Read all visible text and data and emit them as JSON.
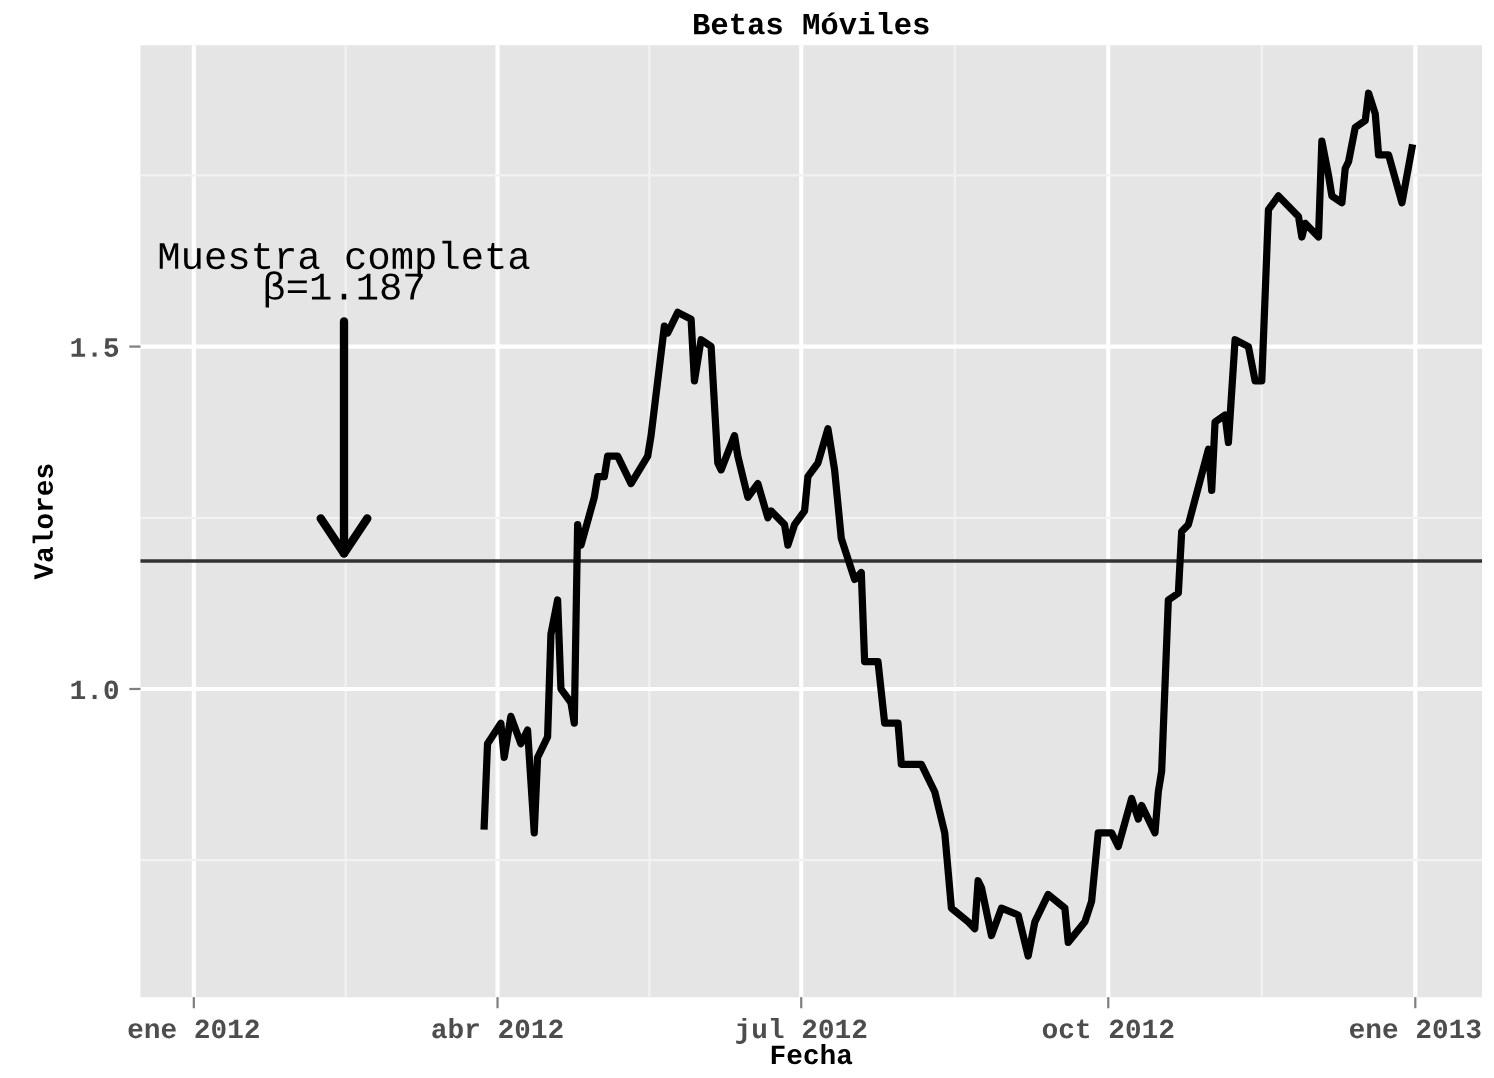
{
  "chart_data": {
    "type": "line",
    "title": "Betas Móviles",
    "xlabel": "Fecha",
    "ylabel": "Valores",
    "x": [
      "2012-03-28",
      "2012-03-29",
      "2012-04-02",
      "2012-04-03",
      "2012-04-05",
      "2012-04-08",
      "2012-04-10",
      "2012-04-12",
      "2012-04-13",
      "2012-04-16",
      "2012-04-17",
      "2012-04-19",
      "2012-04-20",
      "2012-04-23",
      "2012-04-24",
      "2012-04-25",
      "2012-04-26",
      "2012-04-30",
      "2012-05-01",
      "2012-05-03",
      "2012-05-04",
      "2012-05-07",
      "2012-05-11",
      "2012-05-16",
      "2012-05-17",
      "2012-05-21",
      "2012-05-22",
      "2012-05-25",
      "2012-05-29",
      "2012-05-30",
      "2012-06-01",
      "2012-06-04",
      "2012-06-06",
      "2012-06-07",
      "2012-06-11",
      "2012-06-12",
      "2012-06-15",
      "2012-06-18",
      "2012-06-21",
      "2012-06-22",
      "2012-06-26",
      "2012-06-27",
      "2012-06-29",
      "2012-07-02",
      "2012-07-03",
      "2012-07-06",
      "2012-07-09",
      "2012-07-11",
      "2012-07-13",
      "2012-07-17",
      "2012-07-19",
      "2012-07-20",
      "2012-07-24",
      "2012-07-26",
      "2012-07-30",
      "2012-07-31",
      "2012-08-06",
      "2012-08-10",
      "2012-08-13",
      "2012-08-15",
      "2012-08-20",
      "2012-08-22",
      "2012-08-23",
      "2012-08-24",
      "2012-08-27",
      "2012-08-30",
      "2012-09-04",
      "2012-09-07",
      "2012-09-09",
      "2012-09-11",
      "2012-09-13",
      "2012-09-18",
      "2012-09-19",
      "2012-09-24",
      "2012-09-26",
      "2012-09-28",
      "2012-10-02",
      "2012-10-04",
      "2012-10-08",
      "2012-10-10",
      "2012-10-11",
      "2012-10-15",
      "2012-10-16",
      "2012-10-17",
      "2012-10-19",
      "2012-10-22",
      "2012-10-23",
      "2012-10-25",
      "2012-10-31",
      "2012-11-01",
      "2012-11-02",
      "2012-11-05",
      "2012-11-06",
      "2012-11-08",
      "2012-11-12",
      "2012-11-14",
      "2012-11-16",
      "2012-11-18",
      "2012-11-21",
      "2012-11-27",
      "2012-11-28",
      "2012-11-29",
      "2012-12-03",
      "2012-12-04",
      "2012-12-06",
      "2012-12-07",
      "2012-12-10",
      "2012-12-11",
      "2012-12-12",
      "2012-12-14",
      "2012-12-17",
      "2012-12-18",
      "2012-12-20",
      "2012-12-21",
      "2012-12-24",
      "2012-12-28",
      "2012-12-31"
    ],
    "series": [
      {
        "color": "#000000",
        "values": [
          0.8,
          0.92,
          0.95,
          0.9,
          0.96,
          0.92,
          0.94,
          0.79,
          0.9,
          0.93,
          1.08,
          1.13,
          1.0,
          0.98,
          0.95,
          1.24,
          1.21,
          1.28,
          1.31,
          1.31,
          1.34,
          1.34,
          1.3,
          1.34,
          1.37,
          1.53,
          1.52,
          1.55,
          1.54,
          1.45,
          1.51,
          1.5,
          1.33,
          1.32,
          1.37,
          1.34,
          1.28,
          1.3,
          1.25,
          1.26,
          1.24,
          1.21,
          1.24,
          1.26,
          1.31,
          1.33,
          1.38,
          1.32,
          1.22,
          1.16,
          1.17,
          1.04,
          1.04,
          0.95,
          0.95,
          0.89,
          0.89,
          0.85,
          0.79,
          0.68,
          0.66,
          0.65,
          0.72,
          0.71,
          0.64,
          0.68,
          0.67,
          0.61,
          0.66,
          0.68,
          0.7,
          0.68,
          0.63,
          0.66,
          0.69,
          0.79,
          0.79,
          0.77,
          0.84,
          0.81,
          0.83,
          0.79,
          0.85,
          0.88,
          1.13,
          1.14,
          1.23,
          1.24,
          1.35,
          1.29,
          1.39,
          1.4,
          1.36,
          1.51,
          1.5,
          1.45,
          1.45,
          1.7,
          1.72,
          1.69,
          1.66,
          1.68,
          1.66,
          1.8,
          1.75,
          1.72,
          1.71,
          1.76,
          1.77,
          1.82,
          1.83,
          1.87,
          1.84,
          1.78,
          1.78,
          1.71,
          1.79
        ]
      }
    ],
    "xlim": [
      "2011-12-16",
      "2013-01-21"
    ],
    "xticks": [
      {
        "value": "2012-01-01",
        "label": "ene 2012"
      },
      {
        "value": "2012-04-01",
        "label": "abr 2012"
      },
      {
        "value": "2012-07-01",
        "label": "jul 2012"
      },
      {
        "value": "2012-10-01",
        "label": "oct 2012"
      },
      {
        "value": "2013-01-01",
        "label": "ene 2013"
      }
    ],
    "ylim": [
      0.55,
      1.94
    ],
    "yticks": [
      {
        "value": 1,
        "label": "1.0"
      },
      {
        "value": 1.5,
        "label": "1.5"
      }
    ],
    "ref_lines": [
      {
        "axis": "y",
        "value": 1.187,
        "color": "#333333"
      }
    ],
    "annotations": [
      {
        "text": "Muestra completa\nβ=1.187",
        "x": "2012-02-15",
        "y": 1.187
      }
    ],
    "grid": true,
    "line_style": "solid"
  }
}
